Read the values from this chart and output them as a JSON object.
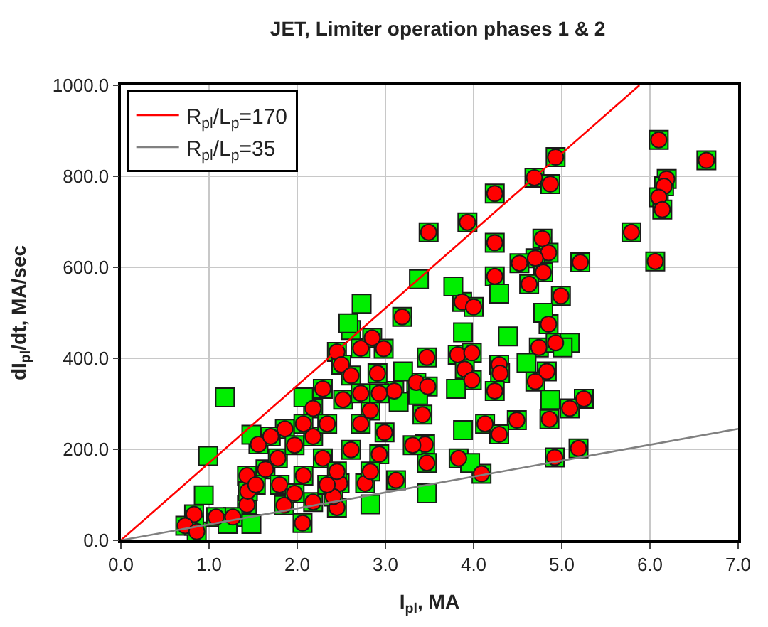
{
  "chart_data": {
    "type": "scatter",
    "title": "JET, Limiter operation phases 1 & 2",
    "xlabel": "I$_{pl}$, MA",
    "ylabel": "dI$_{pl}$/dt, MA/sec",
    "xlim": [
      0,
      7
    ],
    "ylim": [
      0,
      1000
    ],
    "xticks": [
      {
        "value": 0,
        "label": "0.0"
      },
      {
        "value": 1,
        "label": "1.0"
      },
      {
        "value": 2,
        "label": "2.0"
      },
      {
        "value": 3,
        "label": "3.0"
      },
      {
        "value": 4,
        "label": "4.0"
      },
      {
        "value": 5,
        "label": "5.0"
      },
      {
        "value": 6,
        "label": "6.0"
      },
      {
        "value": 7,
        "label": "7.0"
      }
    ],
    "yticks": [
      {
        "value": 0,
        "label": "0.0"
      },
      {
        "value": 200,
        "label": "200.0"
      },
      {
        "value": 400,
        "label": "400.0"
      },
      {
        "value": 600,
        "label": "600.0"
      },
      {
        "value": 800,
        "label": "800.0"
      },
      {
        "value": 1000,
        "label": "1000.0"
      }
    ],
    "grid": true,
    "legend": "top left",
    "series": [
      {
        "marker": "square",
        "color": "#00ee00",
        "x": [
          6.1,
          6.64,
          4.93,
          4.69,
          4.87,
          4.24,
          6.19,
          6.16,
          6.1,
          6.14,
          5.79,
          3.49,
          3.93,
          4.24,
          4.78,
          4.85,
          4.7,
          4.52,
          5.21,
          4.79,
          4.63,
          6.06,
          4.24,
          4.99,
          3.87,
          4.0,
          3.19,
          4.85,
          4.74,
          4.93,
          4.83,
          4.7,
          3.47,
          3.82,
          3.98,
          3.9,
          4.29,
          4.3,
          3.98,
          4.24,
          3.35,
          3.48,
          3.1,
          3.42,
          5.25,
          5.09,
          4.86,
          4.49,
          4.13,
          4.29,
          5.19,
          4.92,
          4.09,
          3.83,
          3.47,
          3.45,
          3.31,
          3.12,
          2.77,
          2.45,
          2.48,
          2.06,
          2.41,
          2.18,
          1.85,
          1.43,
          1.27,
          1.08,
          0.83,
          0.73,
          0.86,
          1.56,
          1.43,
          1.44,
          2.45,
          2.72,
          2.85,
          2.98,
          2.52,
          1.86,
          2.18,
          2.5,
          2.91,
          2.61,
          2.83,
          1.64,
          1.53,
          1.78,
          1.97,
          2.18,
          2.34,
          2.72,
          2.99,
          2.29,
          2.61,
          2.93,
          2.07,
          2.45,
          2.83,
          1.8,
          1.97,
          2.34,
          2.72,
          2.93,
          2.29,
          2.07,
          1.7,
          3.38,
          2.73,
          3.77,
          4.29,
          4.79,
          1.18,
          0.99,
          2.61,
          2.58,
          3.88,
          4.39,
          5.09,
          5.01,
          4.6,
          4.87,
          3.88,
          3.47,
          2.83,
          1.48,
          0.83,
          0.94,
          1.21,
          3.2,
          3.15,
          1.48,
          3.8,
          3.37,
          3.96,
          2.07
        ],
        "values": [
          880,
          835,
          842,
          797,
          783,
          762,
          794,
          778,
          754,
          727,
          677,
          677,
          699,
          654,
          663,
          632,
          620,
          609,
          611,
          589,
          563,
          613,
          580,
          537,
          524,
          513,
          491,
          475,
          424,
          434,
          371,
          349,
          402,
          408,
          412,
          376,
          386,
          367,
          352,
          328,
          347,
          338,
          328,
          276,
          311,
          290,
          266,
          264,
          256,
          233,
          202,
          182,
          146,
          180,
          170,
          211,
          209,
          132,
          125,
          72,
          125,
          38,
          96,
          84,
          77,
          78,
          51,
          51,
          57,
          32,
          19,
          211,
          142,
          108,
          414,
          422,
          445,
          421,
          309,
          245,
          290,
          386,
          367,
          362,
          285,
          156,
          122,
          180,
          209,
          228,
          256,
          256,
          237,
          180,
          199,
          189,
          142,
          151,
          151,
          122,
          103,
          122,
          323,
          323,
          333,
          256,
          228,
          574,
          520,
          558,
          542,
          500,
          314,
          185,
          462,
          477,
          457,
          448,
          434,
          424,
          390,
          309,
          242,
          103,
          79,
          36,
          32,
          99,
          36,
          371,
          304,
          232,
          333,
          319,
          170,
          314
        ]
      },
      {
        "marker": "circle",
        "color": "#ff0000",
        "x": [
          6.1,
          6.64,
          4.93,
          4.69,
          4.87,
          4.24,
          6.19,
          6.16,
          6.1,
          6.14,
          5.79,
          3.49,
          3.93,
          4.24,
          4.78,
          4.85,
          4.7,
          4.52,
          5.21,
          4.79,
          4.63,
          6.06,
          4.24,
          4.99,
          3.87,
          4.0,
          3.19,
          4.85,
          4.74,
          4.93,
          4.83,
          4.7,
          3.47,
          3.82,
          3.98,
          3.9,
          4.29,
          4.3,
          3.98,
          4.24,
          3.35,
          3.48,
          3.1,
          3.42,
          5.25,
          5.09,
          4.86,
          4.49,
          4.13,
          4.29,
          5.19,
          4.92,
          4.09,
          3.83,
          3.47,
          3.45,
          3.31,
          3.12,
          2.77,
          2.45,
          2.48,
          2.06,
          2.41,
          2.18,
          1.85,
          1.43,
          1.27,
          1.08,
          0.83,
          0.73,
          0.86,
          1.56,
          1.43,
          1.44,
          2.45,
          2.72,
          2.85,
          2.98,
          2.52,
          1.86,
          2.18,
          2.5,
          2.91,
          2.61,
          2.83,
          1.64,
          1.53,
          1.78,
          1.97,
          2.18,
          2.34,
          2.72,
          2.99,
          2.29,
          2.61,
          2.93,
          2.07,
          2.45,
          2.83,
          1.8,
          1.97,
          2.34,
          2.72,
          2.93,
          2.29,
          2.07,
          1.7
        ],
        "values": [
          880,
          835,
          842,
          797,
          783,
          762,
          794,
          778,
          754,
          727,
          677,
          677,
          699,
          654,
          663,
          632,
          620,
          609,
          611,
          589,
          563,
          613,
          580,
          537,
          524,
          513,
          491,
          475,
          424,
          434,
          371,
          349,
          402,
          408,
          412,
          376,
          386,
          367,
          352,
          328,
          347,
          338,
          328,
          276,
          311,
          290,
          266,
          264,
          256,
          233,
          202,
          182,
          146,
          180,
          170,
          211,
          209,
          132,
          125,
          72,
          125,
          38,
          96,
          84,
          77,
          78,
          51,
          51,
          57,
          32,
          19,
          211,
          142,
          108,
          414,
          422,
          445,
          421,
          309,
          245,
          290,
          386,
          367,
          362,
          285,
          156,
          122,
          180,
          209,
          228,
          256,
          256,
          237,
          180,
          199,
          189,
          142,
          151,
          151,
          122,
          103,
          122,
          323,
          323,
          333,
          256,
          228
        ]
      },
      {
        "type": "line",
        "name": "R$_{pl}$/L$_{p}$=170",
        "color": "#ff0000",
        "marker": "none",
        "x": [
          0,
          5.88
        ],
        "values": [
          0,
          1000
        ]
      },
      {
        "type": "line",
        "name": "R$_{pl}$/L$_{p}$=35",
        "color": "#808080",
        "marker": "none",
        "x": [
          0,
          7
        ],
        "values": [
          0,
          245
        ]
      }
    ]
  }
}
